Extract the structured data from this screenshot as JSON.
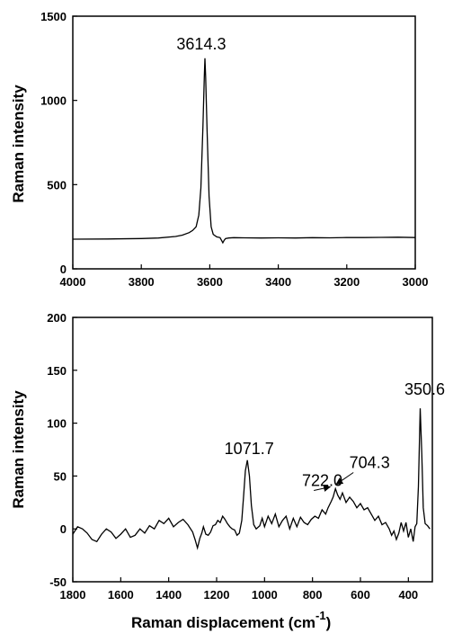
{
  "chart_data": [
    {
      "type": "line",
      "title": "",
      "xlabel": "",
      "ylabel": "Raman intensity",
      "xlim": [
        4000,
        3000
      ],
      "ylim": [
        0,
        1500
      ],
      "x_reversed": true,
      "xticks": [
        4000,
        3800,
        3600,
        3400,
        3200,
        3000
      ],
      "yticks": [
        0,
        500,
        1000,
        1500
      ],
      "grid": false,
      "series": [
        {
          "x": [
            4000,
            3900,
            3800,
            3750,
            3700,
            3680,
            3660,
            3650,
            3640,
            3632,
            3626,
            3620,
            3616,
            3614.3,
            3612,
            3608,
            3602,
            3596,
            3590,
            3580,
            3570,
            3566,
            3562,
            3558,
            3554,
            3545,
            3530,
            3500,
            3450,
            3400,
            3350,
            3300,
            3250,
            3200,
            3150,
            3100,
            3050,
            3000
          ],
          "y": [
            176,
            177,
            180,
            183,
            192,
            200,
            215,
            228,
            250,
            320,
            480,
            850,
            1140,
            1250,
            1140,
            820,
            430,
            250,
            205,
            190,
            185,
            170,
            155,
            170,
            180,
            183,
            185,
            184,
            183,
            184,
            183,
            185,
            184,
            186,
            186,
            187,
            188,
            186
          ]
        }
      ],
      "annotations": [
        {
          "text": "3614.3",
          "x": 3614.3,
          "y": 1250
        }
      ]
    },
    {
      "type": "line",
      "title": "",
      "xlabel": "Raman displacement (cm",
      "xlabel_sup": "-1",
      "xlabel_close": ")",
      "ylabel": "Raman intensity",
      "xlim": [
        1800,
        300
      ],
      "ylim": [
        -50,
        200
      ],
      "x_reversed": true,
      "xticks": [
        1800,
        1600,
        1400,
        1200,
        1000,
        800,
        600,
        400
      ],
      "yticks": [
        -50,
        0,
        50,
        100,
        150,
        200
      ],
      "grid": false,
      "series": [
        {
          "x": [
            1800,
            1780,
            1760,
            1740,
            1720,
            1700,
            1680,
            1660,
            1640,
            1620,
            1600,
            1580,
            1560,
            1540,
            1520,
            1500,
            1480,
            1460,
            1440,
            1420,
            1400,
            1380,
            1360,
            1340,
            1320,
            1300,
            1290,
            1280,
            1270,
            1262,
            1255,
            1245,
            1235,
            1225,
            1215,
            1205,
            1195,
            1185,
            1175,
            1165,
            1155,
            1145,
            1135,
            1125,
            1115,
            1105,
            1095,
            1087,
            1080,
            1071.7,
            1063,
            1055,
            1045,
            1035,
            1020,
            1010,
            1000,
            985,
            970,
            955,
            940,
            925,
            910,
            895,
            880,
            865,
            850,
            835,
            820,
            805,
            790,
            775,
            760,
            745,
            735,
            722,
            714,
            704.3,
            695,
            685,
            675,
            660,
            645,
            630,
            615,
            600,
            585,
            570,
            555,
            540,
            525,
            510,
            495,
            480,
            470,
            460,
            450,
            440,
            430,
            420,
            410,
            400,
            390,
            380,
            372,
            365,
            358,
            350.6,
            344,
            338,
            330,
            320,
            310
          ],
          "y": [
            -5,
            2,
            0,
            -4,
            -10,
            -12,
            -5,
            0,
            -3,
            -9,
            -5,
            0,
            -8,
            -6,
            0,
            -4,
            3,
            0,
            8,
            5,
            10,
            2,
            6,
            9,
            4,
            -3,
            -10,
            -18,
            -9,
            -4,
            2,
            -5,
            -6,
            -3,
            3,
            4,
            8,
            6,
            12,
            9,
            5,
            2,
            0,
            -1,
            -6,
            -4,
            8,
            32,
            55,
            65,
            50,
            22,
            4,
            0,
            3,
            10,
            2,
            12,
            5,
            14,
            2,
            8,
            12,
            0,
            10,
            2,
            11,
            6,
            4,
            9,
            12,
            10,
            18,
            14,
            20,
            26,
            30,
            38,
            32,
            28,
            34,
            25,
            30,
            26,
            20,
            24,
            18,
            20,
            14,
            8,
            12,
            4,
            6,
            0,
            -6,
            -2,
            -10,
            -4,
            6,
            -2,
            6,
            -8,
            0,
            -12,
            2,
            5,
            40,
            114,
            70,
            20,
            5,
            3,
            0
          ]
        }
      ],
      "annotations": [
        {
          "text": "1071.7",
          "x": 1071.7,
          "y": 65
        },
        {
          "text": "722.0",
          "x": 722.0,
          "y": 38
        },
        {
          "text": "704.3",
          "x": 704.3,
          "y": 38
        },
        {
          "text": "350.6",
          "x": 350.6,
          "y": 114
        }
      ]
    }
  ]
}
